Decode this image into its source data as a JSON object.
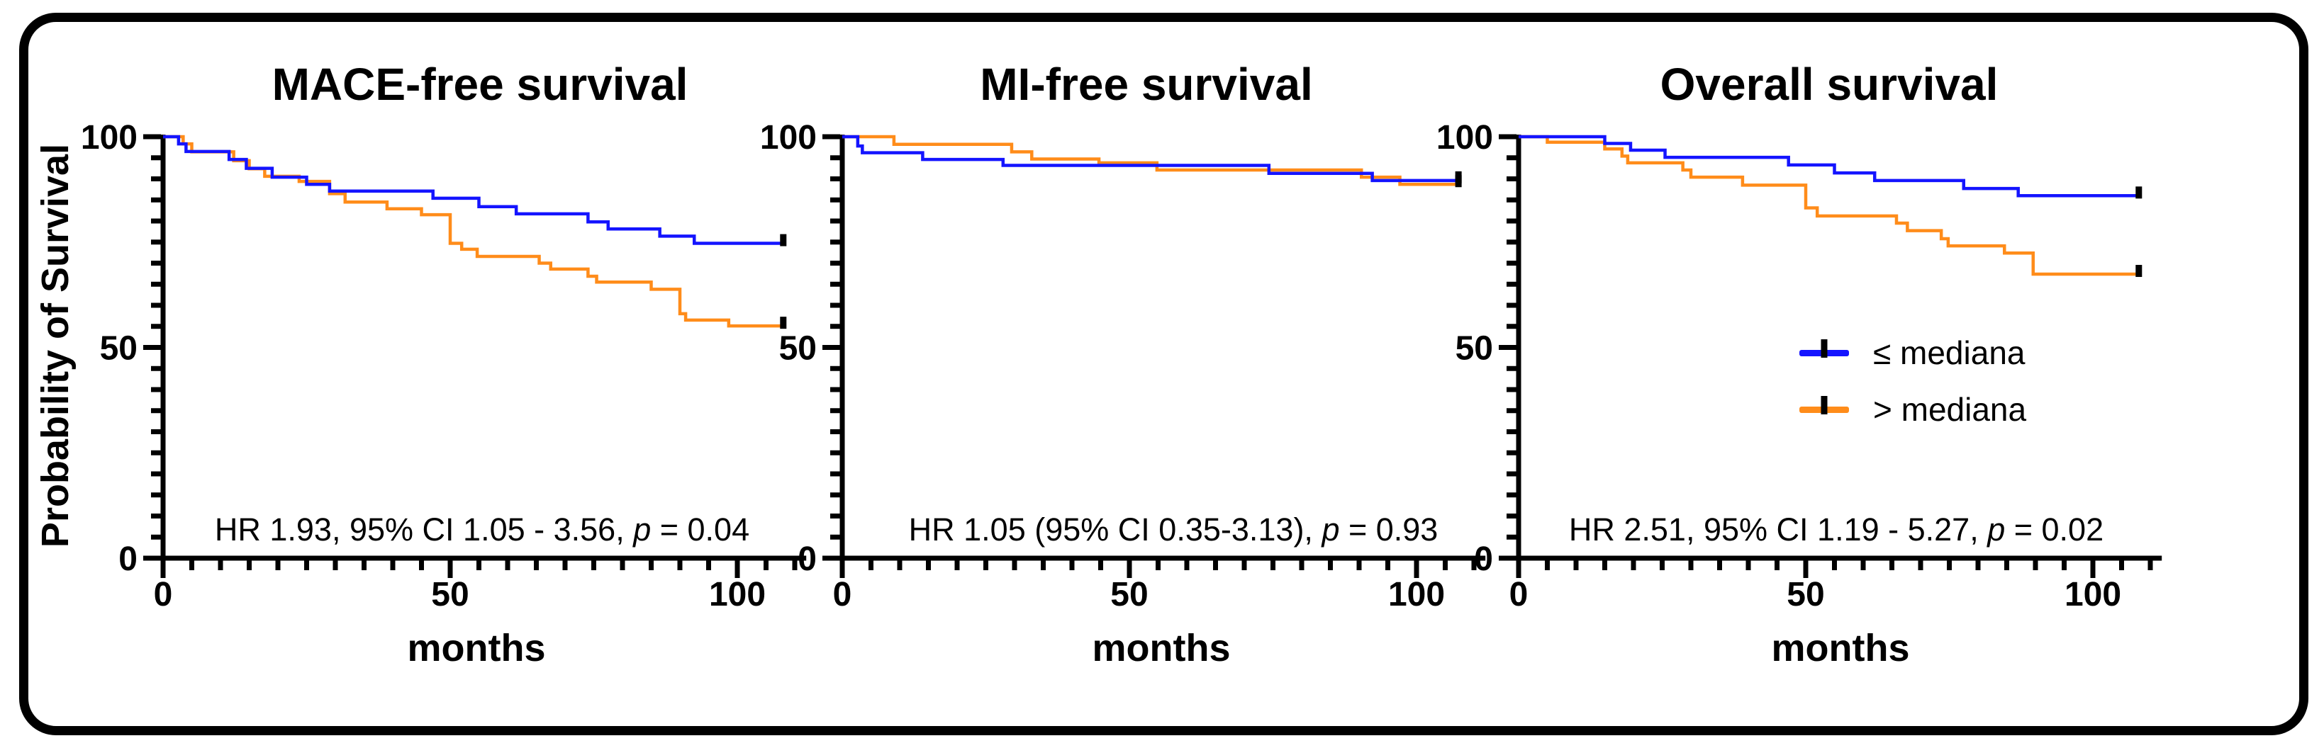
{
  "figure": {
    "background": "#ffffff",
    "border_color": "#000000",
    "axis_color": "#000000",
    "blue": "#1414ff",
    "orange": "#ff8c1a"
  },
  "y_axis_label": "Probability of Survival",
  "legend": {
    "entries": [
      {
        "label": "≤ mediana",
        "color": "#1414ff",
        "marker": "line-with-censor-tick"
      },
      {
        "label": "> mediana",
        "color": "#ff8c1a",
        "marker": "line-with-censor-tick"
      }
    ]
  },
  "chart_data": [
    {
      "type": "line",
      "subtype": "kaplan-meier-step",
      "title": "MACE-free survival",
      "hr_text": "HR 1.93, 95% CI 1.05 - 3.56, ",
      "p_label": "p",
      "p_value": " = 0.04",
      "xlabel": "months",
      "ylabel": "Probability of Survival",
      "xlim": [
        0,
        112
      ],
      "ylim": [
        0,
        100
      ],
      "x_major_ticks": [
        0,
        50,
        100
      ],
      "x_minor_step": 5,
      "x_minor_max": 110,
      "y_major_ticks": [
        0,
        50,
        100
      ],
      "y_minor_step": 5,
      "grid": false,
      "series": [
        {
          "name": "≤ mediana",
          "color": "#1414ff",
          "end_month": 108,
          "censor_at_end": true,
          "steps": [
            [
              0,
              100
            ],
            [
              2.7,
              98.3
            ],
            [
              4,
              96.5
            ],
            [
              11.5,
              94.6
            ],
            [
              14.5,
              92.5
            ],
            [
              19,
              90.4
            ],
            [
              25,
              88.7
            ],
            [
              29,
              87.1
            ],
            [
              47,
              85.4
            ],
            [
              55,
              83.4
            ],
            [
              61.5,
              81.7
            ],
            [
              74,
              79.8
            ],
            [
              77.5,
              78.1
            ],
            [
              86.5,
              76.4
            ],
            [
              92.5,
              74.7
            ]
          ]
        },
        {
          "name": "> mediana",
          "color": "#ff8c1a",
          "end_month": 108,
          "censor_at_end": true,
          "steps": [
            [
              0,
              100
            ],
            [
              3.5,
              98.3
            ],
            [
              5,
              96.4
            ],
            [
              12.3,
              94.3
            ],
            [
              15,
              92.4
            ],
            [
              17.7,
              90.6
            ],
            [
              23.7,
              89.4
            ],
            [
              29,
              86.5
            ],
            [
              31.7,
              84.5
            ],
            [
              39,
              82.9
            ],
            [
              45,
              81.5
            ],
            [
              50,
              74.7
            ],
            [
              52,
              73.3
            ],
            [
              54.7,
              71.6
            ],
            [
              65.5,
              70
            ],
            [
              67.5,
              68.6
            ],
            [
              74,
              66.9
            ],
            [
              75.5,
              65.5
            ],
            [
              85,
              63.8
            ],
            [
              90,
              58
            ],
            [
              91,
              56.5
            ],
            [
              98.5,
              55.1
            ]
          ]
        }
      ]
    },
    {
      "type": "line",
      "subtype": "kaplan-meier-step",
      "title": "MI-free survival",
      "hr_text": "HR 1.05 (95% CI 0.35-3.13), ",
      "p_label": "p",
      "p_value": " = 0.93",
      "xlabel": "months",
      "ylabel": "Probability of Survival",
      "xlim": [
        0,
        112
      ],
      "ylim": [
        0,
        100
      ],
      "x_major_ticks": [
        0,
        50,
        100
      ],
      "x_minor_step": 5,
      "x_minor_max": 110,
      "y_major_ticks": [
        0,
        50,
        100
      ],
      "y_minor_step": 5,
      "grid": false,
      "series": [
        {
          "name": "≤ mediana",
          "color": "#1414ff",
          "end_month": 107.3,
          "censor_at_end": true,
          "steps": [
            [
              0,
              100
            ],
            [
              2.7,
              97.8
            ],
            [
              3.5,
              96.2
            ],
            [
              14,
              94.6
            ],
            [
              28,
              93.2
            ],
            [
              74.3,
              91.3
            ],
            [
              92.3,
              89.6
            ]
          ]
        },
        {
          "name": "> mediana",
          "color": "#ff8c1a",
          "end_month": 107.3,
          "censor_at_end": true,
          "steps": [
            [
              0,
              100
            ],
            [
              9,
              98.2
            ],
            [
              29.5,
              96.4
            ],
            [
              33,
              94.7
            ],
            [
              44.7,
              93.8
            ],
            [
              54.8,
              92.1
            ],
            [
              90.4,
              90.4
            ],
            [
              97.1,
              88.7
            ]
          ]
        }
      ]
    },
    {
      "type": "line",
      "subtype": "kaplan-meier-step",
      "title": "Overall survival",
      "hr_text": "HR 2.51, 95% CI 1.19 - 5.27, ",
      "p_label": "p",
      "p_value": " = 0.02",
      "xlabel": "months",
      "ylabel": "Probability of Survival",
      "xlim": [
        0,
        112
      ],
      "ylim": [
        0,
        100
      ],
      "x_major_ticks": [
        0,
        50,
        100
      ],
      "x_minor_step": 5,
      "x_minor_max": 110,
      "y_major_ticks": [
        0,
        50,
        100
      ],
      "y_minor_step": 5,
      "grid": false,
      "series": [
        {
          "name": "≤ mediana",
          "color": "#1414ff",
          "end_month": 108,
          "censor_at_end": true,
          "steps": [
            [
              0,
              100
            ],
            [
              15,
              98.4
            ],
            [
              19.5,
              96.8
            ],
            [
              25.5,
              95.1
            ],
            [
              47,
              93.3
            ],
            [
              55,
              91.4
            ],
            [
              62,
              89.6
            ],
            [
              77.5,
              87.7
            ],
            [
              87,
              86
            ]
          ]
        },
        {
          "name": "> mediana",
          "color": "#ff8c1a",
          "end_month": 108,
          "censor_at_end": true,
          "steps": [
            [
              0,
              100
            ],
            [
              5,
              98.7
            ],
            [
              15,
              97.1
            ],
            [
              18,
              95.4
            ],
            [
              19,
              93.8
            ],
            [
              28.6,
              92.1
            ],
            [
              30,
              90.4
            ],
            [
              39,
              88.5
            ],
            [
              50,
              83.1
            ],
            [
              52,
              81.2
            ],
            [
              65.8,
              79.5
            ],
            [
              67.7,
              77.7
            ],
            [
              73.6,
              75.8
            ],
            [
              74.8,
              74.1
            ],
            [
              84.6,
              72.4
            ],
            [
              89.6,
              67.4
            ]
          ]
        }
      ]
    }
  ]
}
